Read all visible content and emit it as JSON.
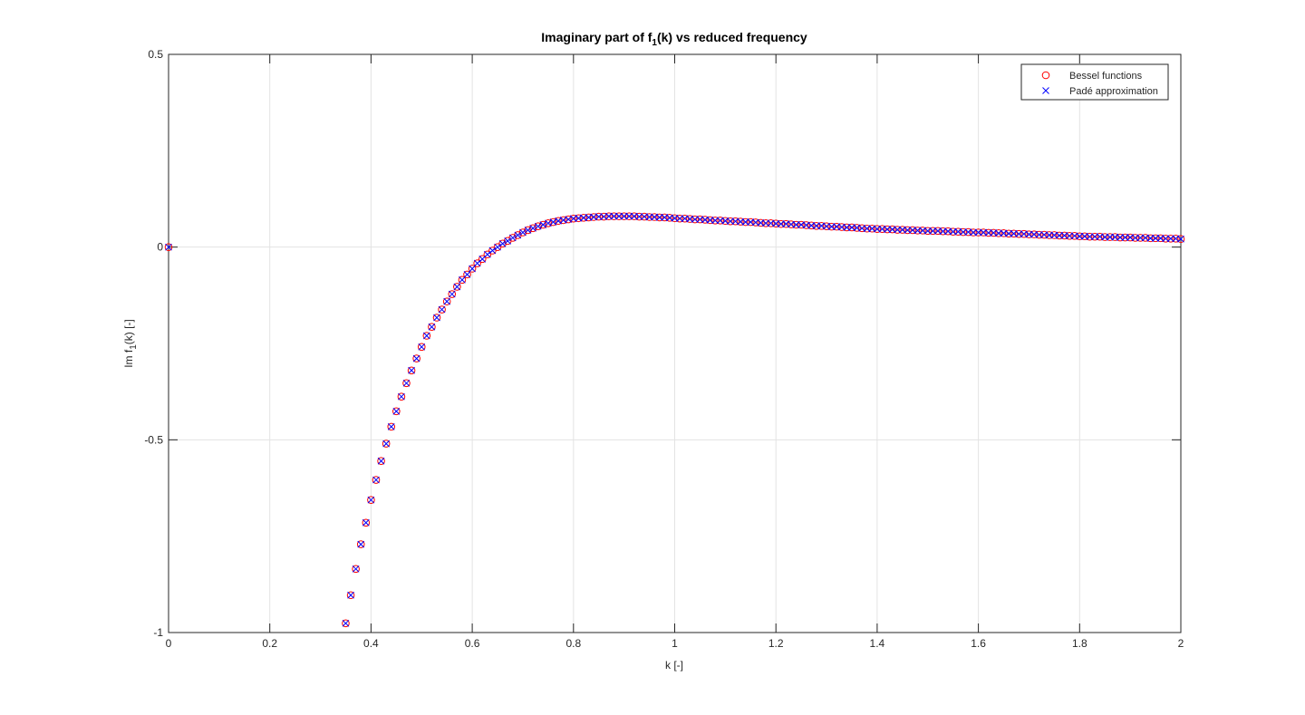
{
  "chart_data": {
    "type": "scatter",
    "title": [
      "Imaginary part of f",
      "1",
      "(k) vs reduced frequency"
    ],
    "xlabel": "k [-]",
    "ylabel": [
      "Im f",
      "1",
      "(k) [-]"
    ],
    "xlim": [
      0,
      2
    ],
    "ylim": [
      -1,
      0.5
    ],
    "xticks": [
      0,
      0.2,
      0.4,
      0.6,
      0.8,
      1,
      1.2,
      1.4,
      1.6,
      1.8,
      2
    ],
    "yticks": [
      -1,
      -0.5,
      0,
      0.5
    ],
    "grid": true,
    "legend": "northeast",
    "x": [
      0,
      0.35,
      0.36,
      0.37,
      0.38,
      0.39,
      0.4,
      0.41,
      0.42,
      0.43,
      0.44,
      0.45,
      0.46,
      0.47,
      0.48,
      0.49,
      0.5,
      0.51,
      0.52,
      0.53,
      0.54,
      0.55,
      0.56,
      0.57,
      0.58,
      0.59,
      0.6,
      0.61,
      0.62,
      0.63,
      0.64,
      0.65,
      0.66,
      0.67,
      0.68,
      0.69,
      0.7,
      0.71,
      0.72,
      0.73,
      0.74,
      0.75,
      0.76,
      0.77,
      0.78,
      0.79,
      0.8,
      0.81,
      0.82,
      0.83,
      0.84,
      0.85,
      0.86,
      0.87,
      0.88,
      0.89,
      0.9,
      0.91,
      0.92,
      0.93,
      0.94,
      0.95,
      0.96,
      0.97,
      0.98,
      0.99,
      1,
      1.01,
      1.02,
      1.03,
      1.04,
      1.05,
      1.06,
      1.07,
      1.08,
      1.09,
      1.1,
      1.11,
      1.12,
      1.13,
      1.14,
      1.15,
      1.16,
      1.17,
      1.18,
      1.19,
      1.2,
      1.21,
      1.22,
      1.23,
      1.24,
      1.25,
      1.26,
      1.27,
      1.28,
      1.29,
      1.3,
      1.31,
      1.32,
      1.33,
      1.34,
      1.35,
      1.36,
      1.37,
      1.38,
      1.39,
      1.4,
      1.41,
      1.42,
      1.43,
      1.44,
      1.45,
      1.46,
      1.47,
      1.48,
      1.49,
      1.5,
      1.51,
      1.52,
      1.53,
      1.54,
      1.55,
      1.56,
      1.57,
      1.58,
      1.59,
      1.6,
      1.61,
      1.62,
      1.63,
      1.64,
      1.65,
      1.66,
      1.67,
      1.68,
      1.69,
      1.7,
      1.71,
      1.72,
      1.73,
      1.74,
      1.75,
      1.76,
      1.77,
      1.78,
      1.79,
      1.8,
      1.81,
      1.82,
      1.83,
      1.84,
      1.85,
      1.86,
      1.87,
      1.88,
      1.89,
      1.9,
      1.91,
      1.92,
      1.93,
      1.94,
      1.95,
      1.96,
      1.97,
      1.98,
      1.99,
      2
    ],
    "series": [
      {
        "name": "Bessel functions",
        "color": "#ff0000",
        "marker": "o",
        "values": [
          0,
          -0.976,
          -0.903,
          -0.835,
          -0.771,
          -0.715,
          -0.656,
          -0.604,
          -0.555,
          -0.51,
          -0.466,
          -0.426,
          -0.388,
          -0.353,
          -0.32,
          -0.289,
          -0.259,
          -0.23,
          -0.207,
          -0.183,
          -0.162,
          -0.141,
          -0.122,
          -0.103,
          -0.085,
          -0.071,
          -0.056,
          -0.042,
          -0.031,
          -0.019,
          -0.009,
          0,
          0.009,
          0.016,
          0.024,
          0.031,
          0.038,
          0.044,
          0.049,
          0.054,
          0.058,
          0.062,
          0.065,
          0.068,
          0.07,
          0.072,
          0.074,
          0.075,
          0.076,
          0.077,
          0.078,
          0.079,
          0.079,
          0.08,
          0.08,
          0.08,
          0.08,
          0.08,
          0.08,
          0.079,
          0.079,
          0.078,
          0.078,
          0.077,
          0.077,
          0.076,
          0.075,
          0.074,
          0.074,
          0.073,
          0.072,
          0.072,
          0.071,
          0.07,
          0.069,
          0.069,
          0.068,
          0.067,
          0.067,
          0.066,
          0.065,
          0.065,
          0.064,
          0.063,
          0.062,
          0.062,
          0.061,
          0.06,
          0.06,
          0.059,
          0.058,
          0.058,
          0.057,
          0.056,
          0.055,
          0.055,
          0.054,
          0.053,
          0.053,
          0.052,
          0.051,
          0.051,
          0.05,
          0.049,
          0.048,
          0.048,
          0.047,
          0.047,
          0.046,
          0.046,
          0.045,
          0.045,
          0.044,
          0.044,
          0.043,
          0.043,
          0.042,
          0.042,
          0.042,
          0.041,
          0.041,
          0.04,
          0.04,
          0.039,
          0.039,
          0.038,
          0.038,
          0.038,
          0.037,
          0.037,
          0.036,
          0.036,
          0.035,
          0.035,
          0.034,
          0.034,
          0.033,
          0.033,
          0.032,
          0.032,
          0.031,
          0.031,
          0.03,
          0.03,
          0.029,
          0.029,
          0.028,
          0.028,
          0.027,
          0.027,
          0.027,
          0.026,
          0.026,
          0.026,
          0.025,
          0.025,
          0.025,
          0.024,
          0.024,
          0.024,
          0.023,
          0.023,
          0.023,
          0.022,
          0.022,
          0.022,
          0.021
        ]
      },
      {
        "name": "Padé approximation",
        "color": "#0000ff",
        "marker": "x",
        "values": [
          0,
          -0.976,
          -0.903,
          -0.835,
          -0.771,
          -0.715,
          -0.656,
          -0.604,
          -0.555,
          -0.51,
          -0.466,
          -0.426,
          -0.388,
          -0.353,
          -0.32,
          -0.289,
          -0.259,
          -0.23,
          -0.207,
          -0.183,
          -0.162,
          -0.141,
          -0.122,
          -0.103,
          -0.085,
          -0.071,
          -0.056,
          -0.042,
          -0.031,
          -0.019,
          -0.009,
          0,
          0.009,
          0.016,
          0.024,
          0.031,
          0.038,
          0.044,
          0.049,
          0.054,
          0.058,
          0.062,
          0.065,
          0.068,
          0.07,
          0.072,
          0.074,
          0.075,
          0.076,
          0.077,
          0.078,
          0.079,
          0.079,
          0.08,
          0.08,
          0.08,
          0.08,
          0.08,
          0.08,
          0.079,
          0.079,
          0.078,
          0.078,
          0.077,
          0.077,
          0.076,
          0.075,
          0.074,
          0.074,
          0.073,
          0.072,
          0.072,
          0.071,
          0.07,
          0.069,
          0.069,
          0.068,
          0.067,
          0.067,
          0.066,
          0.065,
          0.065,
          0.064,
          0.063,
          0.062,
          0.062,
          0.061,
          0.06,
          0.06,
          0.059,
          0.058,
          0.058,
          0.057,
          0.056,
          0.055,
          0.055,
          0.054,
          0.053,
          0.053,
          0.052,
          0.051,
          0.051,
          0.05,
          0.049,
          0.048,
          0.048,
          0.047,
          0.047,
          0.046,
          0.046,
          0.045,
          0.045,
          0.044,
          0.044,
          0.043,
          0.043,
          0.042,
          0.042,
          0.042,
          0.041,
          0.041,
          0.04,
          0.04,
          0.039,
          0.039,
          0.038,
          0.038,
          0.038,
          0.037,
          0.037,
          0.036,
          0.036,
          0.035,
          0.035,
          0.034,
          0.034,
          0.033,
          0.033,
          0.032,
          0.032,
          0.031,
          0.031,
          0.03,
          0.03,
          0.029,
          0.029,
          0.028,
          0.028,
          0.027,
          0.027,
          0.027,
          0.026,
          0.026,
          0.026,
          0.025,
          0.025,
          0.025,
          0.024,
          0.024,
          0.024,
          0.023,
          0.023,
          0.023,
          0.022,
          0.022,
          0.022,
          0.021
        ]
      }
    ]
  }
}
